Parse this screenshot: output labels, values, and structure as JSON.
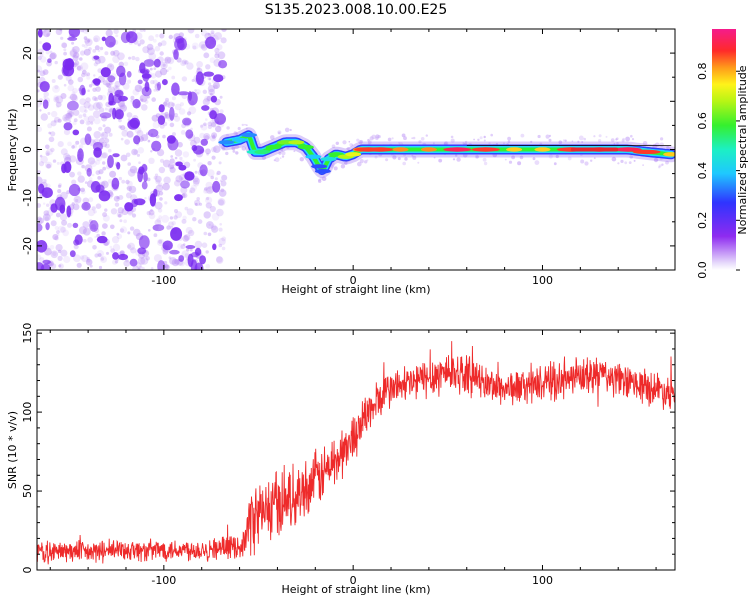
{
  "title": "S135.2023.008.10.00.E25",
  "colors": {
    "snr_line": "#ee2a2a",
    "axis": "#000000",
    "background": "#ffffff",
    "noise_dots": "#7a2bf0",
    "ridge_core": "#e8262b"
  },
  "chart_data": [
    {
      "type": "heatmap",
      "title": "S135.2023.008.10.00.E25",
      "xlabel": "Height of straight line (km)",
      "ylabel": "Frequency (Hz)",
      "xlim": [
        -167,
        170
      ],
      "ylim": [
        -25,
        25
      ],
      "x_ticks": [
        "-100",
        "0",
        "100"
      ],
      "x_tick_values": [
        -100,
        0,
        100
      ],
      "y_ticks": [
        "-20",
        "-10",
        "0",
        "10",
        "20"
      ],
      "y_tick_values": [
        -20,
        -10,
        0,
        10,
        20
      ],
      "colorbar": {
        "label": "Normalized spectral amplitude",
        "range": [
          0,
          0.97
        ],
        "ticks": [
          "0.0",
          "0.2",
          "0.4",
          "0.6",
          "0.8"
        ],
        "tick_values": [
          0.0,
          0.2,
          0.4,
          0.6,
          0.8
        ],
        "colormap": "rainbow (purple-blue-cyan-green-yellow-red-magenta)"
      },
      "noise_region_x": [
        -167,
        -68
      ],
      "ridge": {
        "x": [
          -67,
          -60,
          -55,
          -52,
          -48,
          -42,
          -36,
          -30,
          -25,
          -21,
          -18,
          -16,
          -13,
          -9,
          -4,
          0,
          4,
          8,
          14,
          25,
          40,
          55,
          70,
          85,
          100,
          115,
          130,
          145,
          155,
          168
        ],
        "frequency": [
          1.5,
          2.0,
          3.0,
          -0.5,
          -0.5,
          0.5,
          1.5,
          1.5,
          0.5,
          -1.5,
          -3.5,
          -4.5,
          -2.0,
          -1.0,
          -1.5,
          -1.0,
          0.0,
          0.0,
          0.0,
          0.0,
          0.0,
          0.0,
          0.0,
          0.0,
          0.0,
          0.0,
          0.0,
          0.0,
          -0.5,
          -1.0
        ],
        "amplitude": [
          0.35,
          0.4,
          0.35,
          0.5,
          0.55,
          0.6,
          0.65,
          0.7,
          0.6,
          0.4,
          0.3,
          0.3,
          0.45,
          0.6,
          0.7,
          0.75,
          0.85,
          0.9,
          0.9,
          0.85,
          0.85,
          0.95,
          0.9,
          0.8,
          0.8,
          0.9,
          0.97,
          0.95,
          0.9,
          0.8
        ]
      },
      "grid": false
    },
    {
      "type": "line",
      "xlabel": "Height of straight line (km)",
      "ylabel": "SNR (10 * v/v)",
      "xlim": [
        -167,
        170
      ],
      "ylim": [
        0,
        152
      ],
      "x_ticks": [
        "-100",
        "0",
        "100"
      ],
      "x_tick_values": [
        -100,
        0,
        100
      ],
      "y_ticks": [
        "0",
        "50",
        "100",
        "150"
      ],
      "y_tick_values": [
        0,
        50,
        100,
        150
      ],
      "series": [
        {
          "x": [
            -167,
            -160,
            -150,
            -140,
            -130,
            -120,
            -110,
            -100,
            -90,
            -80,
            -70,
            -60,
            -57,
            -55,
            -50,
            -45,
            -40,
            -35,
            -30,
            -25,
            -20,
            -15,
            -10,
            -5,
            0,
            5,
            10,
            15,
            20,
            30,
            40,
            50,
            60,
            70,
            80,
            90,
            100,
            110,
            120,
            130,
            140,
            150,
            160,
            170
          ],
          "values": [
            12,
            11,
            12,
            11,
            12,
            13,
            12,
            13,
            13,
            13,
            14,
            15,
            18,
            30,
            35,
            38,
            42,
            45,
            48,
            52,
            57,
            62,
            68,
            75,
            84,
            95,
            102,
            110,
            115,
            118,
            122,
            126,
            124,
            118,
            115,
            116,
            118,
            120,
            122,
            124,
            120,
            117,
            115,
            112
          ],
          "noise_amplitude": [
            7,
            7,
            7,
            7,
            7,
            7,
            7,
            7,
            7,
            7,
            7,
            7,
            9,
            20,
            22,
            22,
            22,
            20,
            18,
            18,
            18,
            18,
            18,
            16,
            15,
            14,
            14,
            13,
            12,
            12,
            13,
            14,
            12,
            11,
            11,
            11,
            11,
            12,
            12,
            12,
            11,
            11,
            11,
            11
          ]
        }
      ],
      "grid": false
    }
  ]
}
